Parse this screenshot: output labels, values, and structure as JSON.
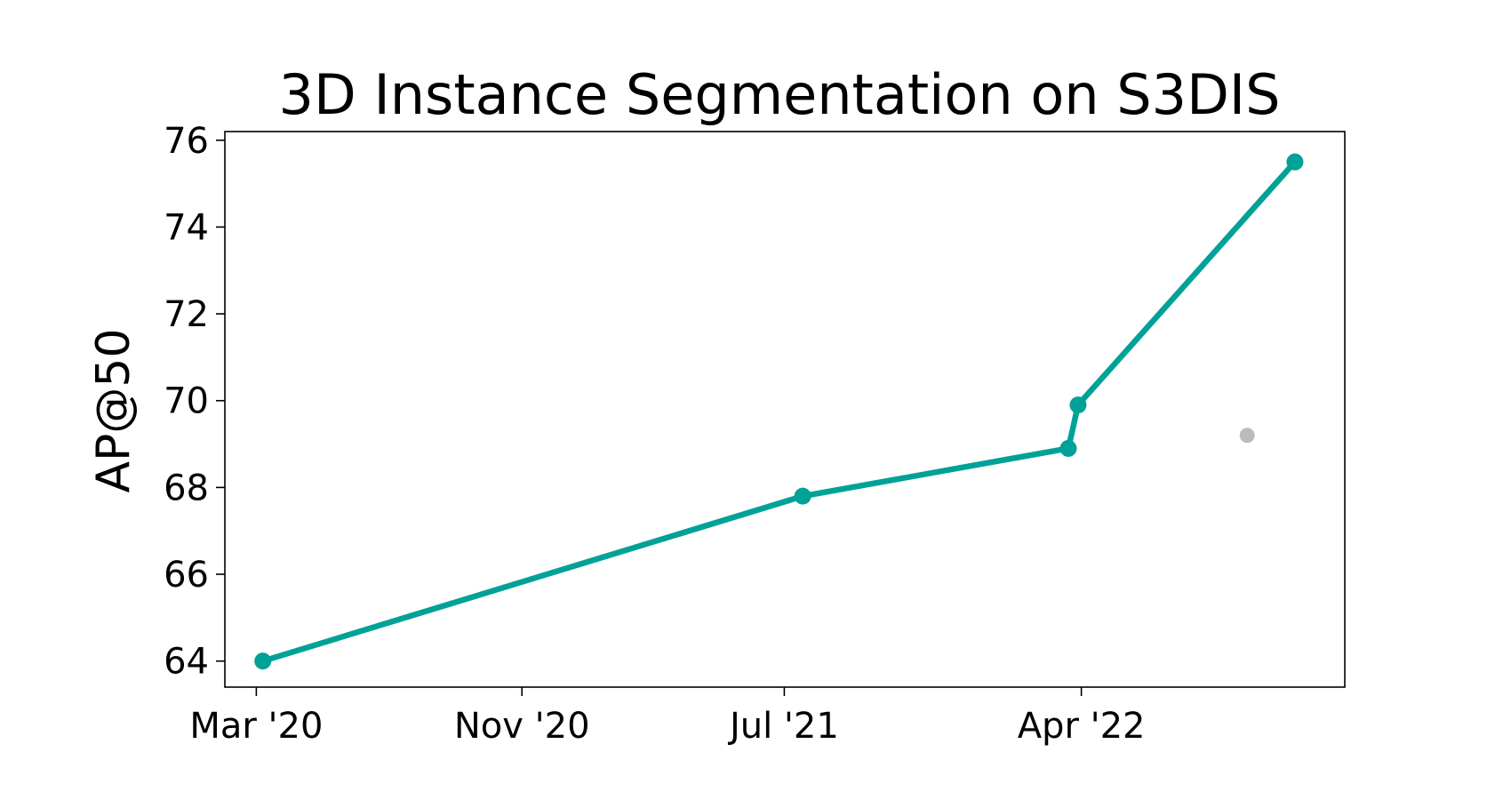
{
  "chart_data": {
    "type": "line",
    "title": "3D Instance Segmentation on S3DIS",
    "xlabel": "",
    "ylabel": "AP@50",
    "ylim": [
      63.4,
      76.2
    ],
    "xlim": [
      "2020-02-01",
      "2022-11-30"
    ],
    "yticks": [
      64,
      66,
      68,
      70,
      72,
      74,
      76
    ],
    "xticks": [
      {
        "date": "2020-03-01",
        "label": "Mar '20"
      },
      {
        "date": "2020-11-01",
        "label": "Nov '20"
      },
      {
        "date": "2021-07-01",
        "label": "Jul '21"
      },
      {
        "date": "2022-04-01",
        "label": "Apr '22"
      }
    ],
    "grid": false,
    "series": [
      {
        "color": "#00A197",
        "points": [
          {
            "x": "2020-03-07",
            "y": 64.0
          },
          {
            "x": "2021-07-18",
            "y": 67.8
          },
          {
            "x": "2022-03-20",
            "y": 68.9
          },
          {
            "x": "2022-03-29",
            "y": 69.9
          },
          {
            "x": "2022-10-15",
            "y": 75.5
          }
        ]
      }
    ],
    "other_points": [
      {
        "x": "2022-09-01",
        "y": 69.2,
        "color": "#BBBBBB"
      }
    ]
  }
}
